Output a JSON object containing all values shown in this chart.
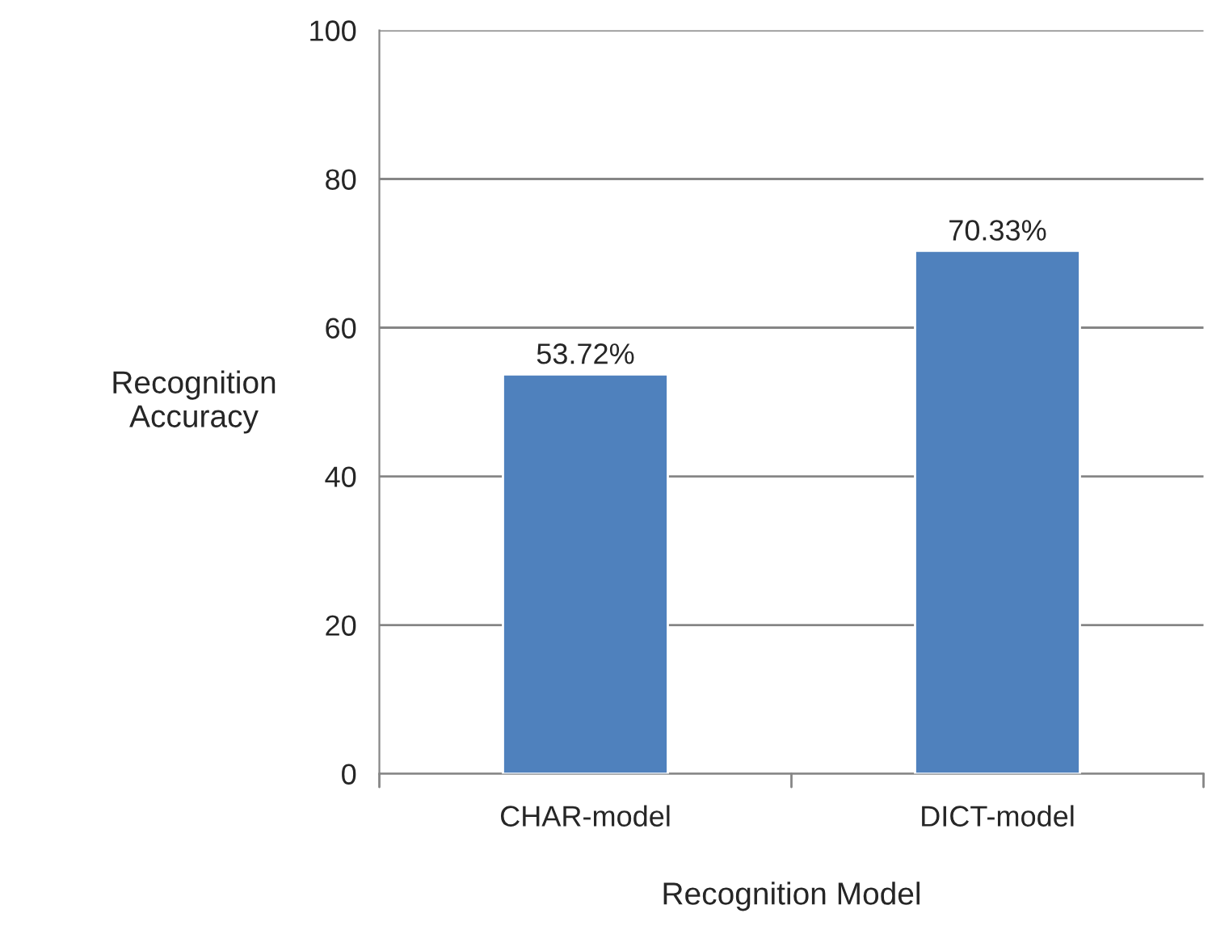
{
  "chart_data": {
    "type": "bar",
    "xlabel": "Recognition Model",
    "ylabel": "Recognition\nAccuracy",
    "categories": [
      "CHAR-model",
      "DICT-model"
    ],
    "values": [
      53.72,
      70.33
    ],
    "value_labels": [
      "53.72%",
      "70.33%"
    ],
    "color": "#4f81bd",
    "ylim": [
      0,
      100
    ],
    "yticks": [
      0,
      20,
      40,
      60,
      80,
      100
    ],
    "grid": "y",
    "legend": false
  }
}
